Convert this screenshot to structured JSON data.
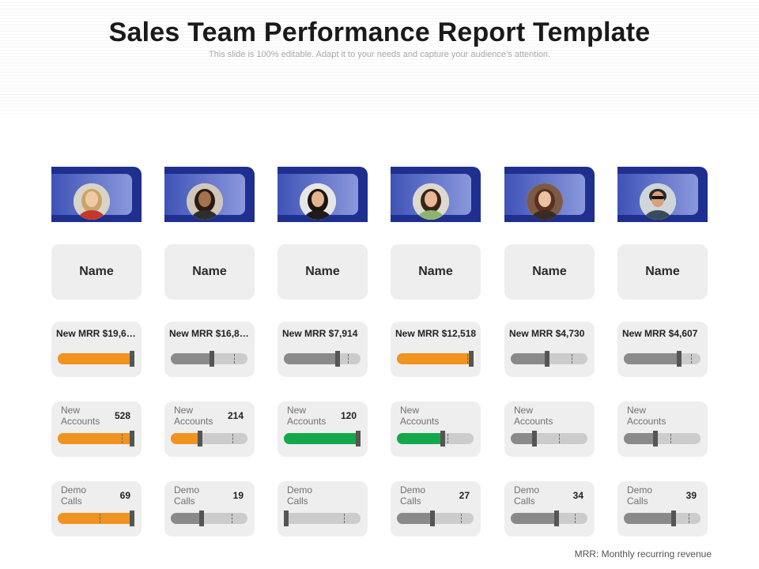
{
  "header": {
    "title": "Sales Team Performance Report Template",
    "subtitle": "This slide is 100% editable. Adapt it to your needs and capture your audience’s attention."
  },
  "colors": {
    "header_dark": "#1e2f8f",
    "card_bg": "#eeeeee",
    "track": "#cccccc",
    "orange": "#f0931f",
    "gray": "#8a8a8a",
    "green": "#14a84a",
    "marker": "#555555"
  },
  "members": [
    {
      "name": "Name",
      "avatar_icon": "woman-portrait-icon",
      "mrr": {
        "text": "New MRR  $19,6…",
        "level": 1.0,
        "color": "orange",
        "target": 0.97
      },
      "accounts": {
        "label": "New Accounts",
        "value": "528",
        "level": 1.0,
        "color": "orange",
        "target": 0.83
      },
      "demo": {
        "label": "Demo Calls",
        "value": "69",
        "level": 1.0,
        "color": "orange",
        "target": 0.55
      }
    },
    {
      "name": "Name",
      "avatar_icon": "woman-portrait-icon",
      "mrr": {
        "text": "New MRR  $16,8…",
        "level": 0.54,
        "color": "gray",
        "target": 0.82
      },
      "accounts": {
        "label": "New Accounts",
        "value": "214",
        "level": 0.38,
        "color": "orange",
        "target": 0.8
      },
      "demo": {
        "label": "Demo Calls",
        "value": "19",
        "level": 0.4,
        "color": "gray",
        "target": 0.79
      }
    },
    {
      "name": "Name",
      "avatar_icon": "woman-portrait-icon",
      "mrr": {
        "text": "New MRR  $7,914",
        "level": 0.7,
        "color": "gray",
        "target": 0.84
      },
      "accounts": {
        "label": "New Accounts",
        "value": "120",
        "level": 1.0,
        "color": "green",
        "target": 0.95
      },
      "demo": {
        "label": "Demo Calls",
        "value": "",
        "level": 0.0,
        "color": "gray",
        "target": 0.78
      }
    },
    {
      "name": "Name",
      "avatar_icon": "woman-portrait-icon",
      "mrr": {
        "text": "New MRR  $12,518",
        "level": 1.0,
        "color": "orange",
        "target": 0.92
      },
      "accounts": {
        "label": "New Accounts",
        "value": "",
        "level": 0.6,
        "color": "green",
        "target": 0.66
      },
      "demo": {
        "label": "Demo Calls",
        "value": "27",
        "level": 0.46,
        "color": "gray",
        "target": 0.83
      }
    },
    {
      "name": "Name",
      "avatar_icon": "woman-portrait-icon",
      "mrr": {
        "text": "New MRR  $4,730",
        "level": 0.47,
        "color": "gray",
        "target": 0.79
      },
      "accounts": {
        "label": "New Accounts",
        "value": "",
        "level": 0.31,
        "color": "gray",
        "target": 0.63
      },
      "demo": {
        "label": "Demo Calls",
        "value": "34",
        "level": 0.6,
        "color": "gray",
        "target": 0.83
      }
    },
    {
      "name": "Name",
      "avatar_icon": "man-portrait-icon",
      "mrr": {
        "text": "New MRR  $4,607",
        "level": 0.72,
        "color": "gray",
        "target": 0.88
      },
      "accounts": {
        "label": "New Accounts",
        "value": "",
        "level": 0.41,
        "color": "gray",
        "target": 0.61
      },
      "demo": {
        "label": "Demo Calls",
        "value": "39",
        "level": 0.65,
        "color": "gray",
        "target": 0.85
      }
    }
  ],
  "footnote": "MRR: Monthly recurring revenue"
}
